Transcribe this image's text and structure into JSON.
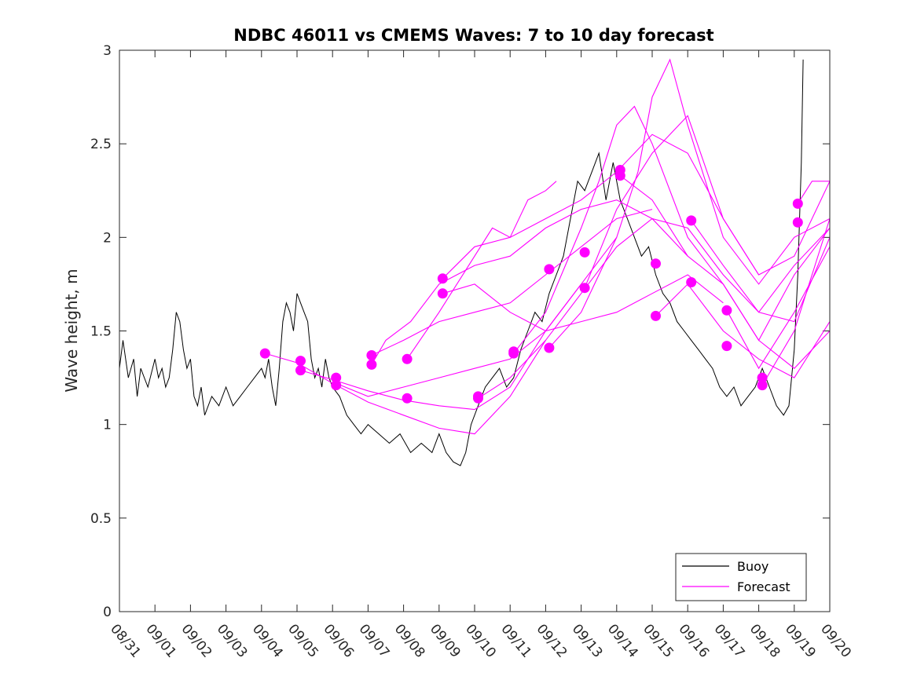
{
  "chart_data": {
    "type": "line",
    "title": "NDBC 46011 vs CMEMS Waves: 7 to 10 day forecast",
    "ylabel": "Wave height, m",
    "xlabel": "",
    "xlim_days": [
      0,
      20
    ],
    "ylim": [
      0,
      3
    ],
    "yticks": [
      0,
      0.5,
      1,
      1.5,
      2,
      2.5,
      3
    ],
    "ytick_labels": [
      "0",
      "0.5",
      "1",
      "1.5",
      "2",
      "2.5",
      "3"
    ],
    "xtick_labels": [
      "08/31",
      "09/01",
      "09/02",
      "09/03",
      "09/04",
      "09/05",
      "09/06",
      "09/07",
      "09/08",
      "09/09",
      "09/10",
      "09/11",
      "09/12",
      "09/13",
      "09/14",
      "09/15",
      "09/16",
      "09/17",
      "09/18",
      "09/19",
      "09/20"
    ],
    "legend": {
      "position": "bottom-right",
      "entries": [
        "Buoy",
        "Forecast"
      ]
    },
    "colors": {
      "buoy": "#000000",
      "forecast": "#ff00ff"
    },
    "buoy": {
      "name": "Buoy",
      "x": [
        0.0,
        0.1,
        0.25,
        0.4,
        0.5,
        0.6,
        0.8,
        1.0,
        1.1,
        1.2,
        1.3,
        1.4,
        1.5,
        1.6,
        1.7,
        1.8,
        1.9,
        2.0,
        2.1,
        2.2,
        2.3,
        2.4,
        2.6,
        2.8,
        3.0,
        3.2,
        3.4,
        3.6,
        3.8,
        4.0,
        4.1,
        4.2,
        4.3,
        4.4,
        4.5,
        4.6,
        4.7,
        4.8,
        4.9,
        5.0,
        5.1,
        5.2,
        5.3,
        5.4,
        5.5,
        5.6,
        5.7,
        5.8,
        5.9,
        6.0,
        6.2,
        6.4,
        6.6,
        6.8,
        7.0,
        7.3,
        7.6,
        7.9,
        8.2,
        8.5,
        8.8,
        9.0,
        9.2,
        9.4,
        9.6,
        9.75,
        9.9,
        10.1,
        10.3,
        10.5,
        10.7,
        10.9,
        11.1,
        11.3,
        11.5,
        11.7,
        11.9,
        12.1,
        12.3,
        12.5,
        12.7,
        12.9,
        13.1,
        13.3,
        13.5,
        13.7,
        13.9,
        14.1,
        14.3,
        14.5,
        14.7,
        14.9,
        15.1,
        15.3,
        15.5,
        15.7,
        15.9,
        16.1,
        16.3,
        16.5,
        16.7,
        16.9,
        17.1,
        17.3,
        17.5,
        17.7,
        17.9,
        18.1,
        18.3,
        18.5,
        18.7,
        18.85,
        19.0,
        19.1,
        19.2,
        19.25
      ],
      "values": [
        1.3,
        1.45,
        1.25,
        1.35,
        1.15,
        1.3,
        1.2,
        1.35,
        1.25,
        1.3,
        1.2,
        1.25,
        1.4,
        1.6,
        1.55,
        1.4,
        1.3,
        1.35,
        1.15,
        1.1,
        1.2,
        1.05,
        1.15,
        1.1,
        1.2,
        1.1,
        1.15,
        1.2,
        1.25,
        1.3,
        1.25,
        1.35,
        1.2,
        1.1,
        1.3,
        1.55,
        1.65,
        1.6,
        1.5,
        1.7,
        1.65,
        1.6,
        1.55,
        1.35,
        1.25,
        1.3,
        1.2,
        1.35,
        1.25,
        1.2,
        1.15,
        1.05,
        1.0,
        0.95,
        1.0,
        0.95,
        0.9,
        0.95,
        0.85,
        0.9,
        0.85,
        0.95,
        0.85,
        0.8,
        0.78,
        0.85,
        1.0,
        1.1,
        1.2,
        1.25,
        1.3,
        1.2,
        1.25,
        1.4,
        1.5,
        1.6,
        1.55,
        1.7,
        1.8,
        1.9,
        2.1,
        2.3,
        2.25,
        2.35,
        2.45,
        2.2,
        2.4,
        2.2,
        2.1,
        2.0,
        1.9,
        1.95,
        1.8,
        1.7,
        1.65,
        1.55,
        1.5,
        1.45,
        1.4,
        1.35,
        1.3,
        1.2,
        1.15,
        1.2,
        1.1,
        1.15,
        1.2,
        1.3,
        1.2,
        1.1,
        1.05,
        1.1,
        1.4,
        1.8,
        2.4,
        2.95
      ]
    },
    "forecast_series": [
      {
        "name": "Forecast",
        "x": [
          4.1,
          5.0,
          6.0,
          7.0,
          8.0,
          9.0,
          10.0,
          11.0,
          12.0
        ],
        "values": [
          1.38,
          1.33,
          1.22,
          1.12,
          1.05,
          0.98,
          0.95,
          1.15,
          1.45
        ]
      },
      {
        "name": "Forecast",
        "x": [
          5.1,
          6.0,
          7.0,
          8.0,
          9.0,
          10.0,
          11.0,
          12.0,
          13.0
        ],
        "values": [
          1.29,
          1.24,
          1.18,
          1.13,
          1.1,
          1.08,
          1.2,
          1.5,
          1.75
        ]
      },
      {
        "name": "Forecast",
        "x": [
          6.1,
          7.0,
          8.0,
          9.0,
          10.0,
          11.0,
          12.0,
          13.0,
          14.0
        ],
        "values": [
          1.22,
          1.15,
          1.2,
          1.25,
          1.3,
          1.35,
          1.5,
          1.75,
          2.0
        ]
      },
      {
        "name": "Forecast",
        "x": [
          7.1,
          8.0,
          9.0,
          10.0,
          11.0,
          12.0,
          13.0,
          14.0,
          15.0
        ],
        "values": [
          1.37,
          1.45,
          1.55,
          1.6,
          1.65,
          1.8,
          1.95,
          2.1,
          2.15
        ]
      },
      {
        "name": "Forecast",
        "x": [
          7.1,
          7.5,
          8.2,
          9.0,
          9.5,
          10.0,
          11.0,
          12.0,
          13.0,
          14.0,
          15.0,
          16.0
        ],
        "values": [
          1.32,
          1.45,
          1.55,
          1.75,
          1.8,
          1.85,
          1.9,
          2.05,
          2.15,
          2.2,
          2.1,
          1.9
        ]
      },
      {
        "name": "Forecast",
        "x": [
          8.1,
          9.0,
          10.0,
          10.5,
          11.0,
          11.5,
          12.0,
          12.3
        ],
        "values": [
          1.35,
          1.6,
          1.9,
          2.05,
          2.0,
          2.2,
          2.25,
          2.3
        ]
      },
      {
        "name": "Forecast",
        "x": [
          9.1,
          10.0,
          11.0,
          12.0,
          13.0,
          14.0,
          15.0,
          16.0,
          17.0
        ],
        "values": [
          1.7,
          1.75,
          1.6,
          1.5,
          1.55,
          1.6,
          1.7,
          1.8,
          1.65
        ]
      },
      {
        "name": "Forecast",
        "x": [
          9.1,
          10.0,
          11.0,
          12.0,
          13.0,
          14.0,
          15.0,
          16.0,
          17.0,
          18.0
        ],
        "values": [
          1.78,
          1.95,
          2.0,
          2.1,
          2.2,
          2.35,
          2.55,
          2.45,
          2.1,
          1.8
        ]
      },
      {
        "name": "Forecast",
        "x": [
          10.1,
          11.0,
          12.0,
          13.0,
          14.0,
          15.0,
          16.0,
          17.0,
          18.0,
          19.0,
          20.0
        ],
        "values": [
          1.14,
          1.25,
          1.45,
          1.7,
          1.95,
          2.1,
          2.05,
          1.8,
          1.6,
          1.85,
          2.05
        ]
      },
      {
        "name": "Forecast",
        "x": [
          11.1,
          12.0,
          13.0,
          13.5,
          14.0,
          14.5,
          15.0,
          16.0,
          17.0,
          18.0,
          19.0,
          20.0
        ],
        "values": [
          1.38,
          1.6,
          2.05,
          2.3,
          2.6,
          2.7,
          2.5,
          2.0,
          1.75,
          1.45,
          1.8,
          2.05
        ]
      },
      {
        "name": "Forecast",
        "x": [
          12.1,
          13.0,
          14.0,
          14.6,
          15.0,
          15.5,
          16.0,
          16.5,
          17.0,
          18.0,
          19.0,
          20.0
        ],
        "values": [
          1.41,
          1.6,
          2.0,
          2.35,
          2.75,
          2.95,
          2.6,
          2.3,
          2.0,
          1.75,
          2.0,
          2.1
        ]
      },
      {
        "name": "Forecast",
        "x": [
          13.1,
          14.0,
          15.0,
          16.0,
          17.0,
          18.0,
          19.0,
          20.0
        ],
        "values": [
          1.73,
          2.15,
          2.45,
          2.65,
          2.1,
          1.8,
          1.9,
          2.3
        ]
      },
      {
        "name": "Forecast",
        "x": [
          14.1,
          15.0,
          16.0,
          17.0,
          18.0,
          19.0,
          20.0
        ],
        "values": [
          2.33,
          2.2,
          1.9,
          1.75,
          1.45,
          1.3,
          1.5
        ]
      },
      {
        "name": "Forecast",
        "x": [
          15.1,
          16.0,
          17.0,
          18.0,
          19.0,
          20.0
        ],
        "values": [
          1.58,
          1.75,
          1.5,
          1.35,
          1.25,
          1.55
        ]
      },
      {
        "name": "Forecast",
        "x": [
          16.1,
          17.0,
          18.0,
          19.0,
          20.0
        ],
        "values": [
          2.09,
          1.85,
          1.6,
          1.55,
          2.0
        ]
      },
      {
        "name": "Forecast",
        "x": [
          17.1,
          18.0,
          19.0,
          20.0
        ],
        "values": [
          1.61,
          1.3,
          1.6,
          1.95
        ]
      },
      {
        "name": "Forecast",
        "x": [
          18.1,
          19.0,
          20.0
        ],
        "values": [
          1.21,
          1.5,
          2.1
        ]
      },
      {
        "name": "Forecast",
        "x": [
          19.1,
          19.5,
          20.0
        ],
        "values": [
          2.18,
          2.3,
          2.3
        ]
      }
    ],
    "forecast_markers": {
      "x": [
        4.1,
        5.1,
        5.1,
        6.1,
        6.1,
        7.1,
        7.1,
        8.1,
        8.1,
        9.1,
        9.1,
        10.1,
        10.1,
        11.1,
        11.1,
        12.1,
        12.1,
        13.1,
        13.1,
        14.1,
        14.1,
        15.1,
        15.1,
        16.1,
        16.1,
        17.1,
        17.1,
        18.1,
        18.1,
        19.1,
        19.1
      ],
      "values": [
        1.38,
        1.34,
        1.29,
        1.25,
        1.21,
        1.37,
        1.32,
        1.35,
        1.14,
        1.78,
        1.7,
        1.15,
        1.14,
        1.39,
        1.38,
        1.83,
        1.41,
        1.92,
        1.73,
        2.36,
        2.33,
        1.86,
        1.58,
        2.09,
        1.76,
        1.61,
        1.42,
        1.25,
        1.21,
        2.18,
        2.08
      ]
    }
  }
}
